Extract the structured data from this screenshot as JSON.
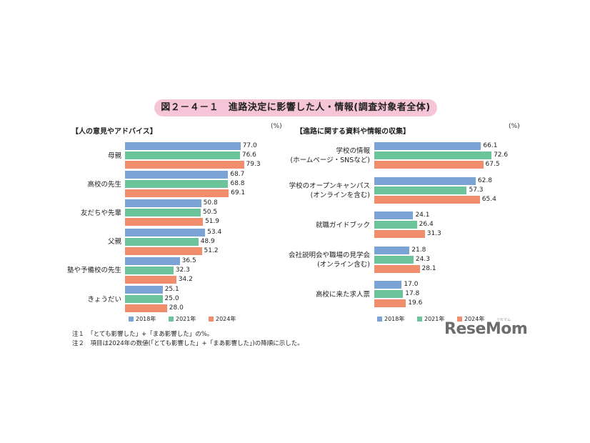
{
  "title": "図２－４－１　進路決定に影響した人・情報(調査対象者全体)",
  "colors": {
    "s2018": "#7ca3d6",
    "s2021": "#6cc49b",
    "s2024": "#f08d6c"
  },
  "chart_data": [
    {
      "type": "bar",
      "orientation": "horizontal",
      "title": "【人の意見やアドバイス】",
      "unit": "(%)",
      "categories": [
        "母親",
        "高校の先生",
        "友だちや先輩",
        "父親",
        "塾や予備校の先生",
        "きょうだい"
      ],
      "series": [
        {
          "name": "2018年",
          "values": [
            77.0,
            68.7,
            50.8,
            53.4,
            36.5,
            25.1
          ]
        },
        {
          "name": "2021年",
          "values": [
            76.6,
            68.8,
            50.5,
            48.9,
            32.3,
            25.0
          ]
        },
        {
          "name": "2024年",
          "values": [
            79.3,
            69.1,
            51.9,
            51.2,
            34.2,
            28.0
          ]
        }
      ],
      "xlim": [
        0,
        100
      ],
      "legend": "bottom"
    },
    {
      "type": "bar",
      "orientation": "horizontal",
      "title": "【進路に関する資料や情報の収集】",
      "unit": "(%)",
      "categories": [
        "学校の情報\n(ホームページ・SNSなど)",
        "学校のオープンキャンパス\n(オンラインを含む)",
        "就職ガイドブック",
        "会社説明会や職場の見学会\n(オンライン含む)",
        "高校に来た求人票"
      ],
      "series": [
        {
          "name": "2018年",
          "values": [
            66.1,
            62.8,
            24.1,
            21.8,
            17.0
          ]
        },
        {
          "name": "2021年",
          "values": [
            72.6,
            57.3,
            26.4,
            24.3,
            17.8
          ]
        },
        {
          "name": "2024年",
          "values": [
            67.5,
            65.4,
            31.3,
            28.1,
            19.6
          ]
        }
      ],
      "xlim": [
        0,
        100
      ],
      "legend": "bottom"
    }
  ],
  "notes": [
    "注１　「とても影響した」+「まあ影響した」の%。",
    "注２　項目は2024年の数値(「とても影響した」+「まあ影響した」)の降順に示した。"
  ],
  "logo": {
    "main": "ReseMom",
    "small": "リセマム"
  }
}
